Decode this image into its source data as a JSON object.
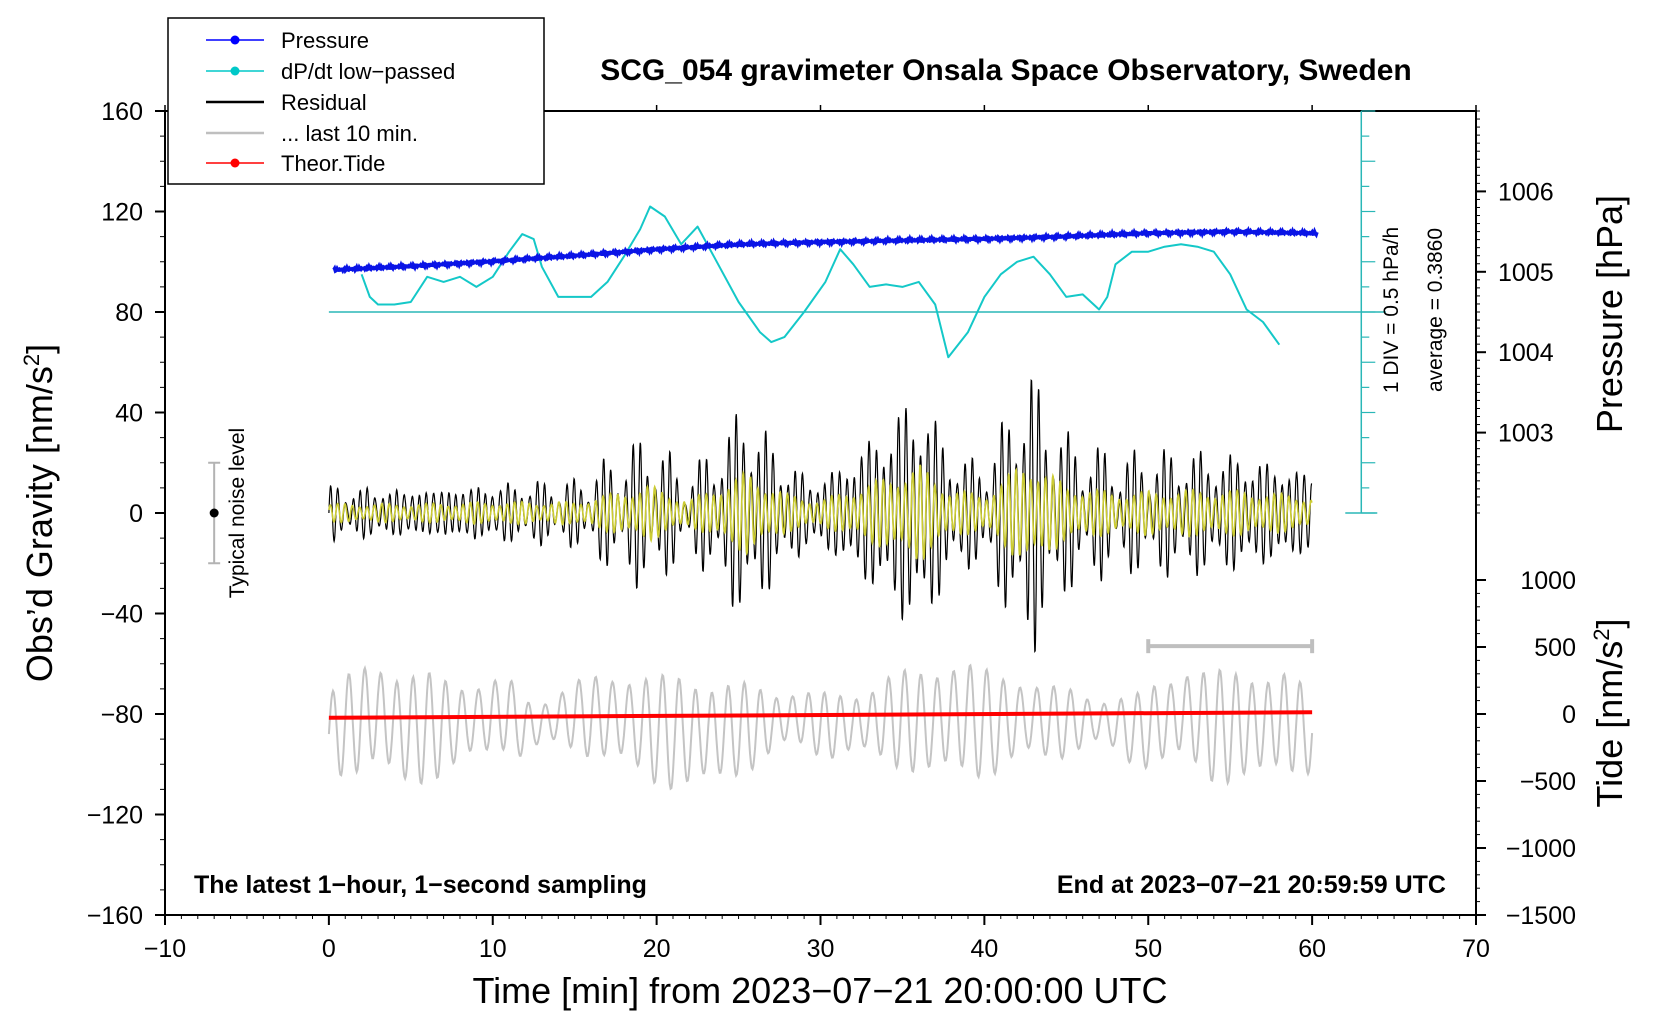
{
  "chart_data": {
    "type": "line",
    "title": "SCG_054 gravimeter Onsala Space Observatory, Sweden",
    "xlabel": "Time [min] from 2023−07−21 20:00:00 UTC",
    "ylabel_left": "Obs’d Gravity [nm/s",
    "ylabel_left_sup": "2",
    "ylabel_left_end": "]",
    "ylabel_pressure": "Pressure [hPa]",
    "ylabel_tide": "Tide [nm/s",
    "ylabel_tide_sup": "2",
    "ylabel_tide_end": "]",
    "xlim": [
      -10,
      70
    ],
    "ylim": [
      -160,
      160
    ],
    "x_ticks": [
      -10,
      0,
      10,
      20,
      30,
      40,
      50,
      60,
      70
    ],
    "x_tick_labels": [
      "−10",
      "0",
      "10",
      "20",
      "30",
      "40",
      "50",
      "60",
      "70"
    ],
    "y_ticks": [
      -160,
      -120,
      -80,
      -40,
      0,
      40,
      80,
      120,
      160
    ],
    "y_tick_labels": [
      "−160",
      "−120",
      "−80",
      "−40",
      "0",
      "40",
      "80",
      "120",
      "160"
    ],
    "pressure_axis": {
      "ticks": [
        1003,
        1004,
        1005,
        1006
      ],
      "labels": [
        "1003",
        "1004",
        "1005",
        "1006"
      ],
      "value_at_gravity_160": 1007.0,
      "value_at_gravity_0": 1002.0
    },
    "tide_axis": {
      "ticks": [
        -1500,
        -1000,
        -500,
        0,
        500,
        1000
      ],
      "labels": [
        "−1500",
        "−1000",
        "−500",
        "0",
        "500",
        "1000"
      ],
      "value_at_gravity_minus_160": -1500,
      "value_at_gravity_minus_80": 0
    },
    "legend": {
      "position": "top-left",
      "entries": [
        {
          "label": "Pressure",
          "color": "#0000ff",
          "marker": true
        },
        {
          "label": "dP/dt low−passed",
          "color": "#00c8c8",
          "marker": true
        },
        {
          "label": "Residual",
          "color": "#000000",
          "marker": false
        },
        {
          "label": "... last 10 min.",
          "color": "#bfbfbf",
          "marker": false
        },
        {
          "label": "Theor.Tide",
          "color": "#ff0000",
          "marker": true
        }
      ]
    },
    "annotations": {
      "bottom_left": "The latest 1−hour, 1−second sampling",
      "bottom_right": "End at 2023−07−21 20:59:59 UTC",
      "noise_label": "Typical noise level",
      "dpdt_scale": "1 DIV = 0.5 hPa/h",
      "dpdt_average": "average = 0.3860"
    },
    "noise_bar": {
      "x": -7,
      "center": 0,
      "half_range": 20
    },
    "last10_bar": {
      "x_start": 50,
      "x_end": 60,
      "y": -53
    },
    "dpdt_zero_line_gravity": 80,
    "dpdt_scale_axis": {
      "x": 63,
      "y_from": 0,
      "y_to": 160
    },
    "pressure_series": {
      "name": "Pressure",
      "x": [
        0,
        5,
        10,
        15,
        20,
        25,
        30,
        35,
        40,
        45,
        50,
        55,
        60
      ],
      "y": [
        1005.02,
        1005.07,
        1005.13,
        1005.2,
        1005.28,
        1005.34,
        1005.37,
        1005.39,
        1005.41,
        1005.44,
        1005.48,
        1005.5,
        1005.48
      ]
    },
    "dpdt_series": {
      "name": "dP/dt low−passed",
      "x": [
        2,
        2.5,
        3,
        4,
        5,
        6,
        7,
        8,
        9,
        10,
        11,
        11.8,
        12.5,
        13,
        14,
        15,
        16,
        17,
        18,
        19,
        19.6,
        20.5,
        21.5,
        22.5,
        23.5,
        25,
        26.3,
        27,
        27.8,
        29,
        30.3,
        31.2,
        32,
        33,
        34,
        35,
        36,
        37,
        37.8,
        39,
        40,
        41,
        42,
        43,
        44,
        45,
        46,
        47,
        47.5,
        48,
        49,
        50,
        51,
        52,
        53,
        54,
        55,
        56,
        57,
        58
      ],
      "y": [
        95,
        86,
        83,
        83,
        84,
        94,
        92,
        94,
        90,
        94,
        104,
        111,
        109,
        98,
        86,
        86,
        86,
        92,
        102,
        113,
        122,
        118,
        107,
        114,
        102,
        84,
        72,
        68,
        70,
        80,
        92,
        105,
        99,
        90,
        91,
        90,
        92,
        83,
        62,
        72,
        86,
        95,
        100,
        102,
        95,
        86,
        87,
        81,
        86,
        99,
        104,
        104,
        106,
        107,
        106,
        104,
        95,
        81,
        76,
        67
      ]
    },
    "residual_series": {
      "name": "Residual",
      "x_start": 0,
      "x_end": 60,
      "envelope": [
        {
          "x": 0,
          "amp": 10
        },
        {
          "x": 5,
          "amp": 10
        },
        {
          "x": 10,
          "amp": 12
        },
        {
          "x": 15,
          "amp": 12
        },
        {
          "x": 19.5,
          "amp": 30
        },
        {
          "x": 22,
          "amp": 14
        },
        {
          "x": 25.5,
          "amp": 44
        },
        {
          "x": 28,
          "amp": 20
        },
        {
          "x": 30,
          "amp": 14
        },
        {
          "x": 33.5,
          "amp": 35
        },
        {
          "x": 36,
          "amp": 52
        },
        {
          "x": 38,
          "amp": 25
        },
        {
          "x": 40,
          "amp": 20
        },
        {
          "x": 42.7,
          "amp": 58
        },
        {
          "x": 45,
          "amp": 30
        },
        {
          "x": 48,
          "amp": 22
        },
        {
          "x": 52,
          "amp": 25
        },
        {
          "x": 56,
          "amp": 24
        },
        {
          "x": 60,
          "amp": 18
        }
      ],
      "period_min": 0.45
    },
    "filtered_series": {
      "name": "Residual (filtered)",
      "color": "#cccc33"
    },
    "last10_series": {
      "name": "... last 10 min.",
      "x": [
        0,
        2.8,
        4.6,
        7.6,
        11.0,
        11.8,
        14.5,
        17.6,
        20.3,
        23.0,
        26.4,
        28.4,
        30.5,
        34.2,
        36.5,
        38.4,
        40.4,
        42.6,
        44.4,
        47.0,
        49.4,
        52.2,
        54.0,
        56.8,
        58.2,
        60
      ],
      "y": [
        -95,
        -66,
        -90,
        -83,
        -66,
        -88,
        -71,
        -73,
        -92,
        -94,
        -84,
        -72,
        -85,
        -75,
        -80,
        -70,
        -83,
        -73,
        -80,
        -77,
        -91,
        -67,
        -86,
        -84,
        -75,
        -95
      ],
      "period_min": 1.0,
      "amp": 20
    },
    "tide_series": {
      "name": "Theor.Tide",
      "x": [
        0,
        60
      ],
      "y": [
        -81.5,
        -79.3
      ]
    }
  }
}
